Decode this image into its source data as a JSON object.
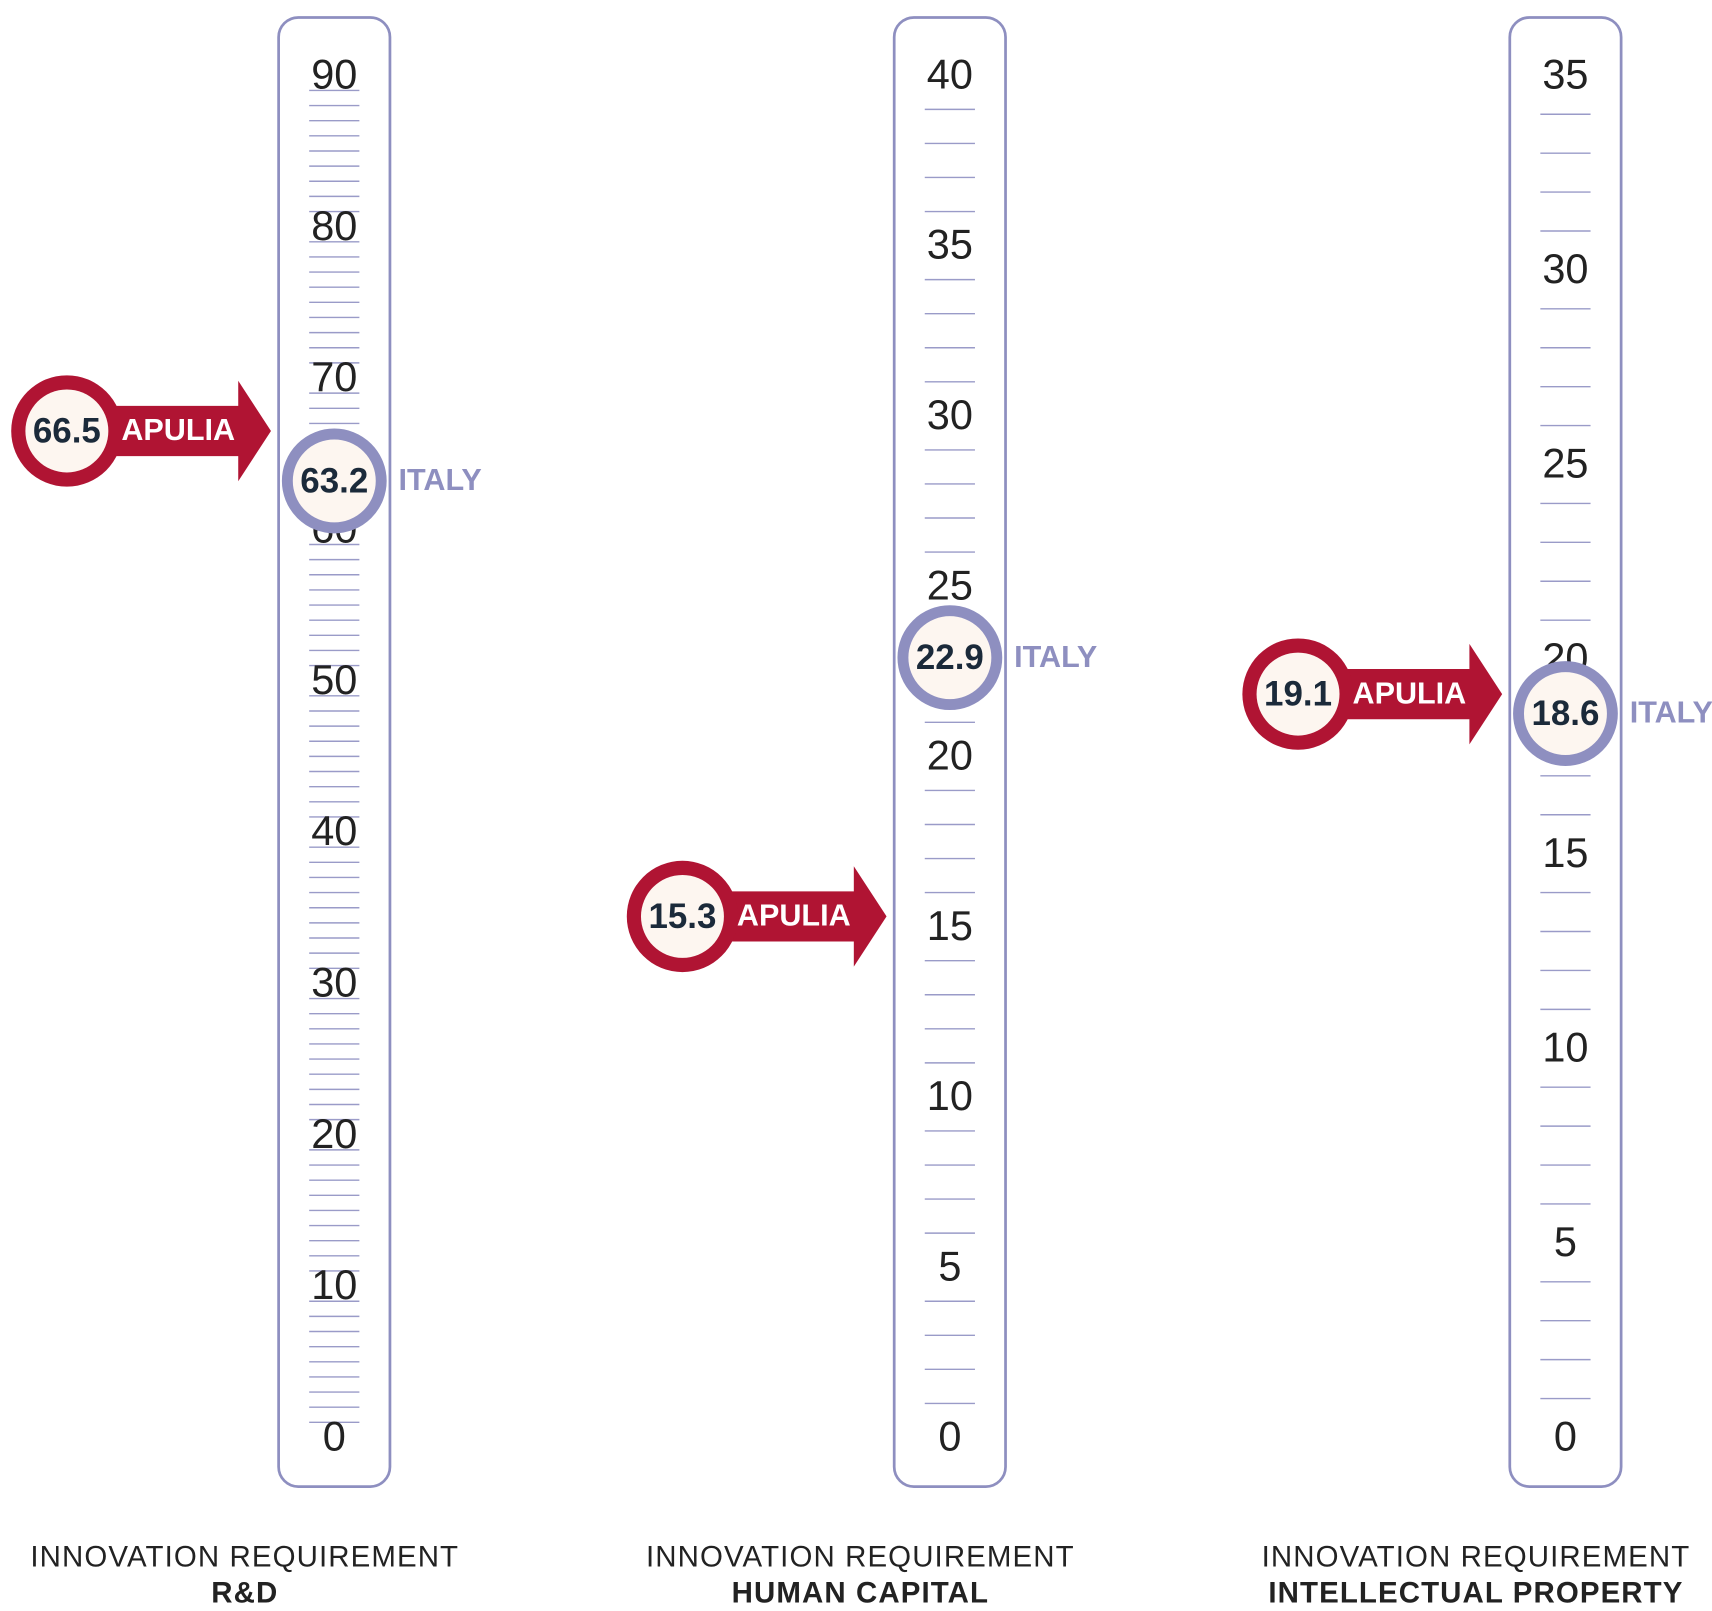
{
  "chart_data": [
    {
      "type": "gauge",
      "title": "INNOVATION REQUIREMENT",
      "subtitle": "R&D",
      "ylim": [
        0,
        90
      ],
      "yticks": [
        0,
        10,
        20,
        30,
        40,
        50,
        60,
        70,
        80,
        90
      ],
      "minor_tick_step": 1,
      "series": [
        {
          "name": "APULIA",
          "color": "#b01433",
          "values": [
            66.5
          ]
        },
        {
          "name": "ITALY",
          "color": "#8e8fc0",
          "values": [
            63.2
          ]
        }
      ]
    },
    {
      "type": "gauge",
      "title": "INNOVATION REQUIREMENT",
      "subtitle": "HUMAN CAPITAL",
      "ylim": [
        0,
        40
      ],
      "yticks": [
        0,
        5,
        10,
        15,
        20,
        25,
        30,
        35,
        40
      ],
      "minor_tick_step": 1,
      "series": [
        {
          "name": "APULIA",
          "color": "#b01433",
          "values": [
            15.3
          ]
        },
        {
          "name": "ITALY",
          "color": "#8e8fc0",
          "values": [
            22.9
          ]
        }
      ]
    },
    {
      "type": "gauge",
      "title": "INNOVATION REQUIREMENT",
      "subtitle": "INTELLECTUAL PROPERTY",
      "ylim": [
        0,
        35
      ],
      "yticks": [
        0,
        5,
        10,
        15,
        20,
        25,
        30,
        35
      ],
      "minor_tick_step": 1,
      "series": [
        {
          "name": "APULIA",
          "color": "#b01433",
          "values": [
            19.1
          ]
        },
        {
          "name": "ITALY",
          "color": "#8e8fc0",
          "values": [
            18.6
          ]
        }
      ]
    }
  ]
}
